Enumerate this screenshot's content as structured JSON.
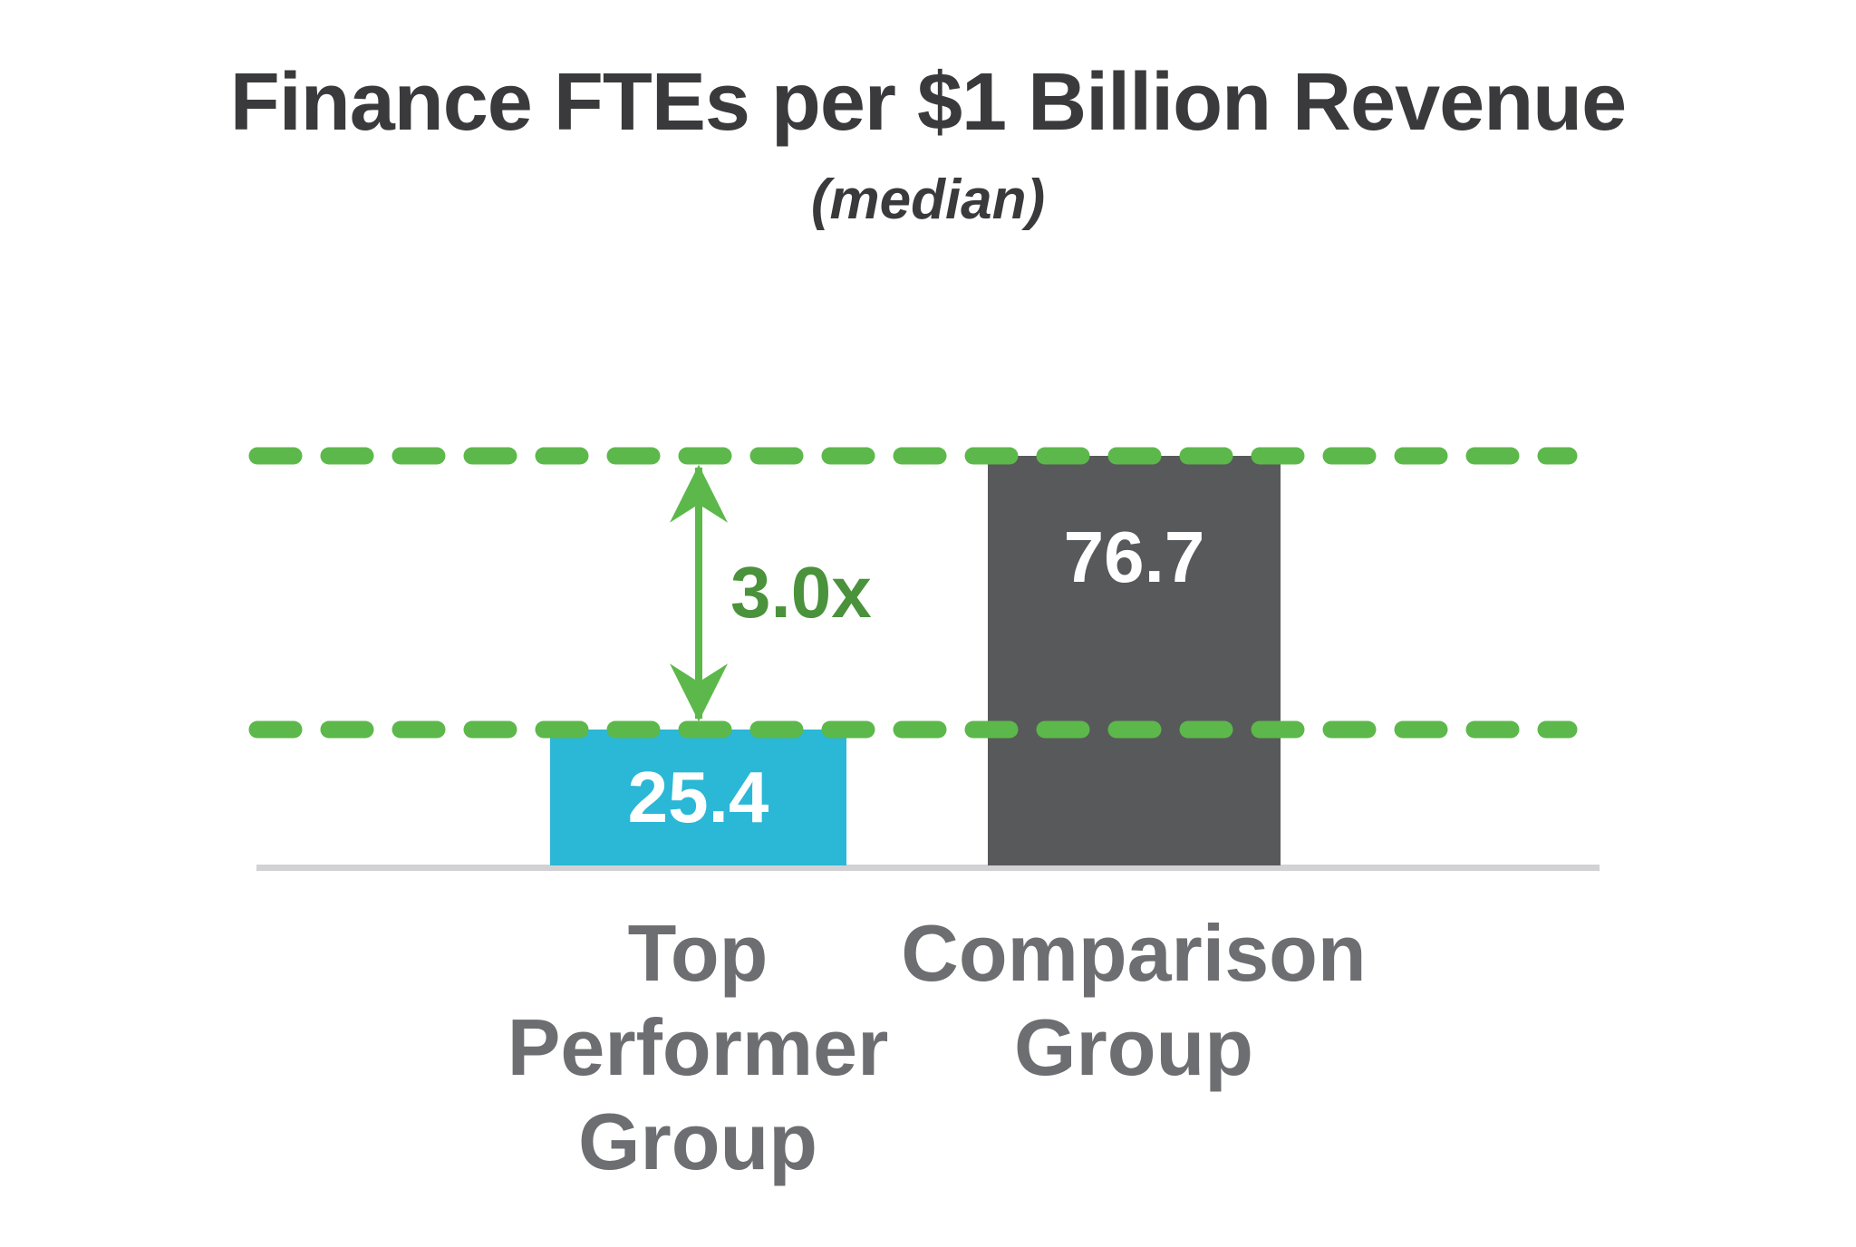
{
  "chart": {
    "title": "Finance FTEs per $1 Billion Revenue",
    "subtitle": "(median)",
    "multiplier_annotation": "3.0x"
  },
  "chart_data": {
    "type": "bar",
    "title": "Finance FTEs per $1 Billion Revenue",
    "subtitle": "(median)",
    "categories": [
      "Top Performer Group",
      "Comparison Group"
    ],
    "values": [
      25.4,
      76.7
    ],
    "value_labels": [
      "25.4",
      "76.7"
    ],
    "bar_colors": [
      "#2BB7D6",
      "#58595B"
    ],
    "annotations": {
      "multiplier_label": "3.0x",
      "multiplier_meaning": "Comparison Group is 3.0x the Top Performer Group",
      "reference_lines_at_values": [
        25.4,
        76.7
      ],
      "reference_line_style": "green dashed, rounded dashes",
      "arrow": "vertical double-headed green arrow spanning between the two dashed reference lines"
    },
    "xlabel": "",
    "ylabel": "",
    "ylim": [
      0,
      76.7
    ],
    "grid": false,
    "legend": false,
    "value_label_position": "inside bars, white bold"
  },
  "colors": {
    "background": "#FFFFFF",
    "title_text": "#3A3A3C",
    "category_text": "#6D6E71",
    "bar_cyan": "#2BB7D6",
    "bar_gray": "#58595B",
    "dash_green": "#5CB84A",
    "multiplier_green": "#4A923C",
    "baseline_gray": "#D2D2D4",
    "value_text": "#FFFFFF"
  }
}
